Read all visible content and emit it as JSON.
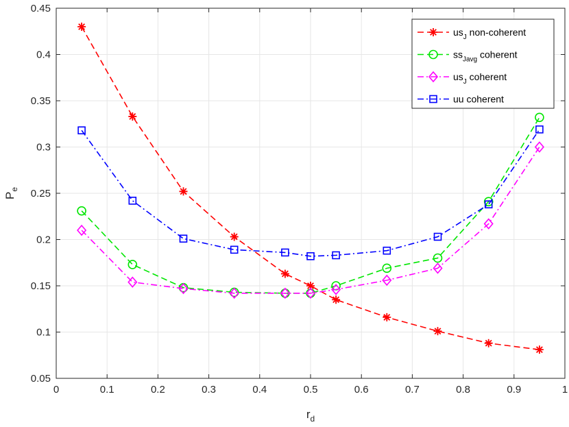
{
  "chart_data": {
    "type": "line",
    "xlabel": {
      "main": "r",
      "sub": "d"
    },
    "ylabel": {
      "main": "P",
      "sub": "e"
    },
    "xlim": [
      0,
      1
    ],
    "ylim": [
      0.05,
      0.45
    ],
    "xticks": [
      "0",
      "0.1",
      "0.2",
      "0.3",
      "0.4",
      "0.5",
      "0.6",
      "0.7",
      "0.8",
      "0.9",
      "1"
    ],
    "yticks": [
      "0.05",
      "0.1",
      "0.15",
      "0.2",
      "0.25",
      "0.3",
      "0.35",
      "0.4",
      "0.45"
    ],
    "grid": true,
    "legend_position": "top-right",
    "x": [
      0.05,
      0.15,
      0.25,
      0.35,
      0.45,
      0.5,
      0.55,
      0.65,
      0.75,
      0.85,
      0.95
    ],
    "series": [
      {
        "legend": {
          "pre": "us",
          "sub": "J",
          "post": " non-coherent"
        },
        "color": "#ff0000",
        "line_style": "dashed",
        "marker": "asterisk",
        "values": [
          0.43,
          0.333,
          0.252,
          0.203,
          0.163,
          0.15,
          0.135,
          0.116,
          0.101,
          0.088,
          0.081
        ]
      },
      {
        "legend": {
          "pre": "ss",
          "sub": "Javg",
          "post": " coherent"
        },
        "color": "#00e600",
        "line_style": "dashed",
        "marker": "circle",
        "values": [
          0.231,
          0.173,
          0.148,
          0.143,
          0.142,
          0.142,
          0.15,
          0.169,
          0.18,
          0.241,
          0.332
        ]
      },
      {
        "legend": {
          "pre": "us",
          "sub": "J",
          "post": " coherent"
        },
        "color": "#ff00ff",
        "line_style": "dashdot",
        "marker": "diamond",
        "values": [
          0.21,
          0.154,
          0.147,
          0.142,
          0.142,
          0.142,
          0.146,
          0.156,
          0.169,
          0.217,
          0.3
        ]
      },
      {
        "legend": {
          "pre": "uu coherent",
          "sub": "",
          "post": ""
        },
        "color": "#0000ff",
        "line_style": "dashdot",
        "marker": "square",
        "values": [
          0.318,
          0.242,
          0.201,
          0.189,
          0.186,
          0.182,
          0.183,
          0.188,
          0.203,
          0.238,
          0.319
        ]
      }
    ]
  }
}
